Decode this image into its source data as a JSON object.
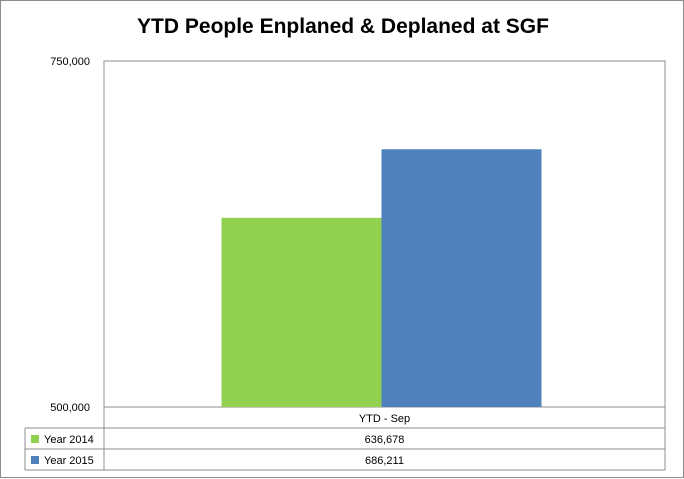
{
  "chart_data": {
    "type": "bar",
    "title": "YTD People Enplaned & Deplaned at SGF",
    "xlabel": "",
    "ylabel": "",
    "ylim": [
      500000,
      750000
    ],
    "yticks": [
      500000,
      750000
    ],
    "ytick_labels": [
      "500,000",
      "750,000"
    ],
    "categories": [
      "YTD - Sep"
    ],
    "series": [
      {
        "name": "Year 2014",
        "values": [
          636678
        ],
        "value_labels": [
          "636,678"
        ],
        "color": "#92d050"
      },
      {
        "name": "Year 2015",
        "values": [
          686211
        ],
        "value_labels": [
          "686,211"
        ],
        "color": "#4f81bd"
      }
    ],
    "grid": false,
    "legend": "data-table-bottom"
  }
}
